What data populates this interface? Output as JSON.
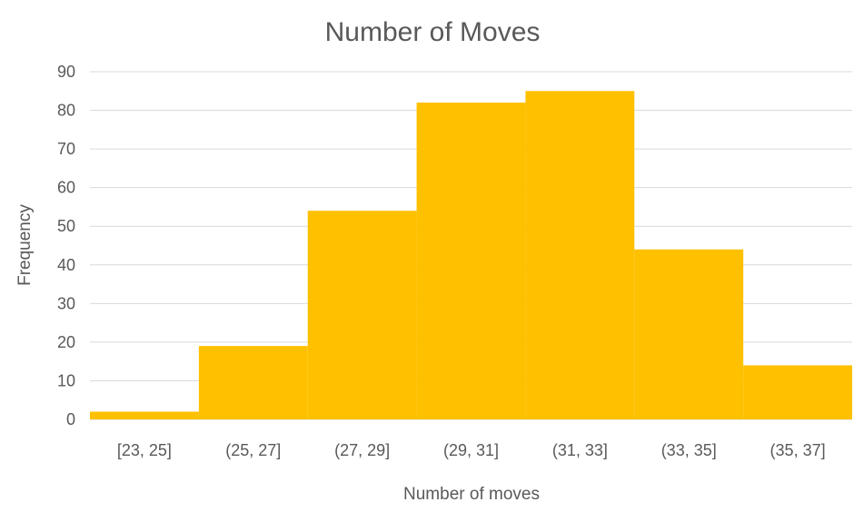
{
  "chart_data": {
    "type": "bar",
    "title": "Number of Moves",
    "xlabel": "Number of moves",
    "ylabel": "Frequency",
    "categories": [
      "[23, 25]",
      "(25, 27]",
      "(27, 29]",
      "(29, 31]",
      "(31, 33]",
      "(33, 35]",
      "(35, 37]"
    ],
    "values": [
      2,
      19,
      54,
      82,
      85,
      44,
      14
    ],
    "ylim": [
      0,
      90
    ],
    "yticks": [
      "0",
      "10",
      "20",
      "30",
      "40",
      "50",
      "60",
      "70",
      "80",
      "90"
    ],
    "grid": true,
    "legend": "none",
    "bar_color": "#FFC000",
    "grid_color": "#D9D9D9",
    "text_color": "#595959"
  }
}
